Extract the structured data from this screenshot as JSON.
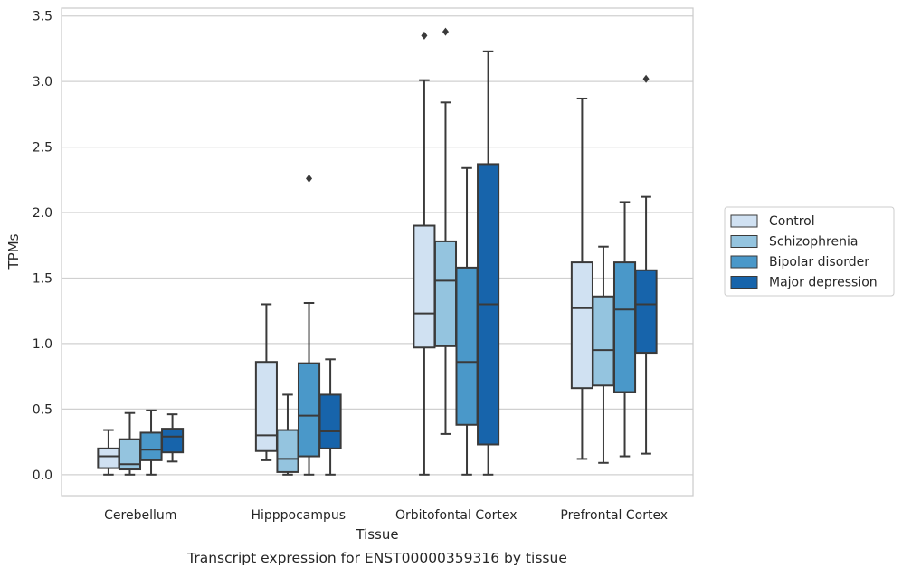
{
  "chart_data": {
    "type": "boxplot",
    "title": "Transcript expression for ENST00000359316 by tissue",
    "xlabel": "Tissue",
    "ylabel": "TPMs",
    "ylim": [
      -0.16,
      3.56
    ],
    "yticks": [
      0.0,
      0.5,
      1.0,
      1.5,
      2.0,
      2.5,
      3.0,
      3.5
    ],
    "ytick_labels": [
      "0.0",
      "0.5",
      "1.0",
      "1.5",
      "2.0",
      "2.5",
      "3.0",
      "3.5"
    ],
    "grid": "horizontal",
    "legend_position": "outside-right",
    "categories": [
      "Cerebellum",
      "Hipppocampus",
      "Orbitofontal Cortex",
      "Prefrontal Cortex"
    ],
    "series": [
      {
        "name": "Control",
        "color": "#d0e1f2",
        "boxes": [
          {
            "whislo": 0.0,
            "q1": 0.05,
            "med": 0.14,
            "q3": 0.2,
            "whishi": 0.34,
            "fliers": []
          },
          {
            "whislo": 0.11,
            "q1": 0.18,
            "med": 0.3,
            "q3": 0.86,
            "whishi": 1.3,
            "fliers": []
          },
          {
            "whislo": 0.0,
            "q1": 0.97,
            "med": 1.23,
            "q3": 1.9,
            "whishi": 3.01,
            "fliers": [
              3.35
            ]
          },
          {
            "whislo": 0.12,
            "q1": 0.66,
            "med": 1.27,
            "q3": 1.62,
            "whishi": 2.87,
            "fliers": []
          }
        ]
      },
      {
        "name": "Schizophrenia",
        "color": "#94c4df",
        "boxes": [
          {
            "whislo": 0.0,
            "q1": 0.04,
            "med": 0.08,
            "q3": 0.27,
            "whishi": 0.47,
            "fliers": []
          },
          {
            "whislo": 0.0,
            "q1": 0.02,
            "med": 0.12,
            "q3": 0.34,
            "whishi": 0.61,
            "fliers": []
          },
          {
            "whislo": 0.31,
            "q1": 0.98,
            "med": 1.48,
            "q3": 1.78,
            "whishi": 2.84,
            "fliers": [
              3.38
            ]
          },
          {
            "whislo": 0.09,
            "q1": 0.68,
            "med": 0.95,
            "q3": 1.36,
            "whishi": 1.74,
            "fliers": []
          }
        ]
      },
      {
        "name": "Bipolar disorder",
        "color": "#4a98c9",
        "boxes": [
          {
            "whislo": 0.0,
            "q1": 0.11,
            "med": 0.19,
            "q3": 0.32,
            "whishi": 0.49,
            "fliers": []
          },
          {
            "whislo": 0.0,
            "q1": 0.14,
            "med": 0.45,
            "q3": 0.85,
            "whishi": 1.31,
            "fliers": [
              2.26
            ]
          },
          {
            "whislo": 0.0,
            "q1": 0.38,
            "med": 0.86,
            "q3": 1.58,
            "whishi": 2.34,
            "fliers": []
          },
          {
            "whislo": 0.14,
            "q1": 0.63,
            "med": 1.26,
            "q3": 1.62,
            "whishi": 2.08,
            "fliers": []
          }
        ]
      },
      {
        "name": "Major depression",
        "color": "#1764ab",
        "boxes": [
          {
            "whislo": 0.1,
            "q1": 0.17,
            "med": 0.29,
            "q3": 0.35,
            "whishi": 0.46,
            "fliers": []
          },
          {
            "whislo": 0.0,
            "q1": 0.2,
            "med": 0.33,
            "q3": 0.61,
            "whishi": 0.88,
            "fliers": []
          },
          {
            "whislo": 0.0,
            "q1": 0.23,
            "med": 1.3,
            "q3": 2.37,
            "whishi": 3.23,
            "fliers": []
          },
          {
            "whislo": 0.16,
            "q1": 0.93,
            "med": 1.3,
            "q3": 1.56,
            "whishi": 2.12,
            "fliers": [
              3.02
            ]
          }
        ]
      }
    ]
  }
}
